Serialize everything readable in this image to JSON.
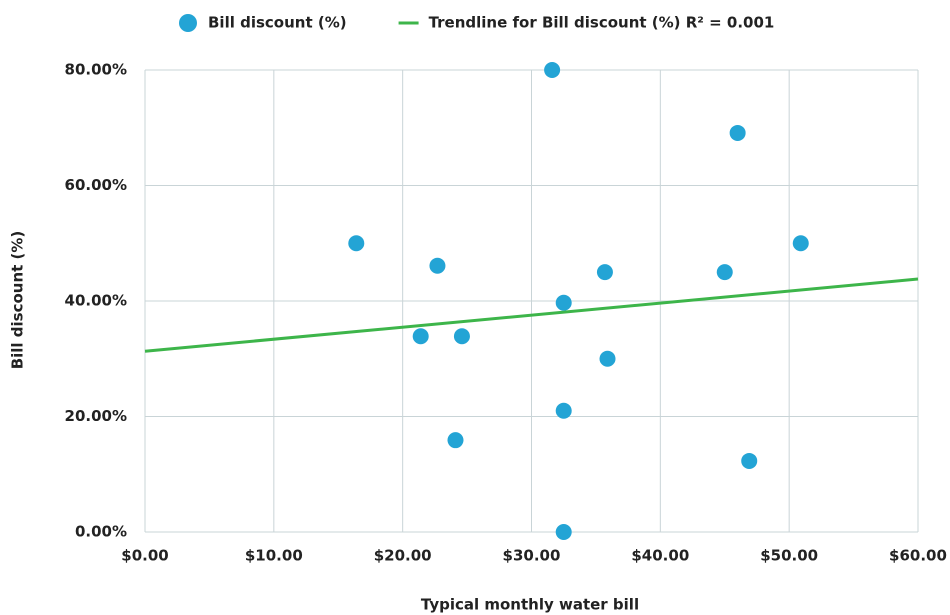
{
  "chart_data": {
    "type": "scatter",
    "x_label": "Typical monthly water bill",
    "y_label": "Bill discount (%)",
    "series": [
      {
        "name": "Bill discount (%)",
        "color": "#23a4d5",
        "x": [
          16.4,
          22.7,
          21.4,
          24.6,
          24.1,
          31.6,
          32.5,
          32.5,
          32.5,
          35.7,
          35.9,
          46.0,
          45.0,
          46.9,
          50.9
        ],
        "values": [
          50,
          46.1,
          33.9,
          33.9,
          15.9,
          80,
          39.7,
          21,
          0,
          45,
          30,
          69.1,
          45,
          12.3,
          50
        ]
      },
      {
        "name": "Trendline for Bill discount (%) R² = 0.001",
        "color": "#3db54a",
        "kind": "trendline",
        "x": [
          0,
          60
        ],
        "values": [
          31.3,
          43.8
        ]
      }
    ],
    "xlim": [
      0,
      60
    ],
    "xticks": [
      {
        "value": 0,
        "label": "$0.00"
      },
      {
        "value": 10,
        "label": "$10.00"
      },
      {
        "value": 20,
        "label": "$20.00"
      },
      {
        "value": 30,
        "label": "$30.00"
      },
      {
        "value": 40,
        "label": "$40.00"
      },
      {
        "value": 50,
        "label": "$50.00"
      },
      {
        "value": 60,
        "label": "$60.00"
      }
    ],
    "ylim": [
      0,
      80
    ],
    "yticks": [
      {
        "value": 0,
        "label": "0.00%"
      },
      {
        "value": 20,
        "label": "20.00%"
      },
      {
        "value": 40,
        "label": "40.00%"
      },
      {
        "value": 60,
        "label": "60.00%"
      },
      {
        "value": 80,
        "label": "80.00%"
      }
    ],
    "grid": true,
    "legend": "top"
  }
}
